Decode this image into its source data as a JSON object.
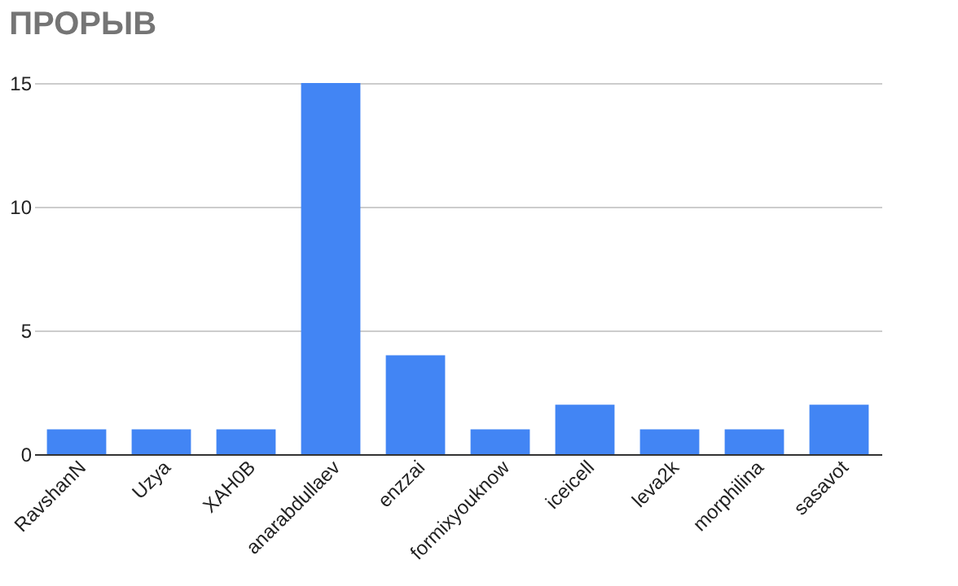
{
  "chart_data": {
    "type": "bar",
    "title": "ПРОРЫВ",
    "categories": [
      "RavshanN",
      "Uzya",
      "XAH0B",
      "anarabdullaev",
      "enzzai",
      "formixyouknow",
      "iceicell",
      "leva2k",
      "morphilina",
      "sasavot"
    ],
    "values": [
      1,
      1,
      1,
      15,
      4,
      1,
      2,
      1,
      1,
      2
    ],
    "color": "#4285f4",
    "ylim": [
      0,
      15
    ],
    "yticks": [
      0,
      5,
      10,
      15
    ],
    "grid": "y"
  }
}
